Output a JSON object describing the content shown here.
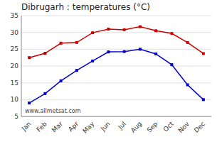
{
  "chart_data": {
    "type": "line",
    "title": "Dibrugarh : temperatures (°C)",
    "categories": [
      "Jan",
      "Feb",
      "Mar",
      "Apr",
      "May",
      "Jun",
      "Jul",
      "Aug",
      "Sep",
      "Oct",
      "Nov",
      "Dec"
    ],
    "series": [
      {
        "color": "#cc0000",
        "marker": "square",
        "values": [
          22.5,
          23.8,
          26.8,
          27.0,
          29.9,
          31.0,
          30.8,
          31.7,
          30.5,
          29.7,
          27.0,
          23.7
        ]
      },
      {
        "color": "#0000cc",
        "marker": "square",
        "values": [
          9.0,
          11.8,
          15.6,
          18.7,
          21.5,
          24.2,
          24.3,
          25.0,
          23.6,
          20.4,
          14.4,
          10.0
        ]
      }
    ],
    "ylim": [
      5,
      35
    ],
    "yticks": [
      5,
      10,
      15,
      20,
      25,
      30,
      35
    ],
    "grid": true,
    "annotations": [
      "www.allmetsat.com"
    ]
  }
}
